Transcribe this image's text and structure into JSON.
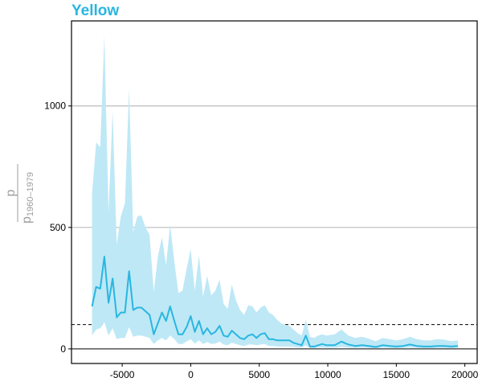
{
  "title": "Yellow",
  "chart_data": {
    "type": "line",
    "title": "Yellow",
    "xlabel": "",
    "ylabel_main": "p",
    "ylabel_denominator": "p",
    "ylabel_subscript": "1960–1979",
    "xlim": [
      -8700,
      20900
    ],
    "ylim": [
      -60,
      1350
    ],
    "xticks": [
      -5000,
      0,
      5000,
      10000,
      15000,
      20000
    ],
    "yticks": [
      0,
      500,
      1000
    ],
    "reference_line": 100,
    "grid": "horizontal",
    "colors": {
      "line": "#29b6e0",
      "band": "#bee8f6",
      "title": "#29b6e0",
      "grid": "#bdbdbd",
      "ylabel": "#9e9e9e"
    },
    "series": [
      {
        "x": [
          -7200,
          -6900,
          -6600,
          -6300,
          -6000,
          -5700,
          -5400,
          -5100,
          -4800,
          -4500,
          -4200,
          -3900,
          -3600,
          -3300,
          -3000,
          -2700,
          -2400,
          -2100,
          -1800,
          -1500,
          -1200,
          -900,
          -600,
          -300,
          0,
          300,
          600,
          900,
          1200,
          1500,
          1800,
          2100,
          2400,
          2700,
          3000,
          3300,
          3600,
          3900,
          4200,
          4500,
          4800,
          5100,
          5400,
          5700,
          6000,
          6300,
          6600,
          6900,
          7200,
          7500,
          7800,
          8100,
          8400,
          8700,
          9000,
          9300,
          9600,
          9900,
          10500,
          11000,
          11500,
          12000,
          12500,
          13000,
          13500,
          14000,
          14500,
          15000,
          15500,
          16000,
          16500,
          17000,
          17500,
          18000,
          18500,
          19000,
          19500
        ],
        "values": [
          175,
          255,
          248,
          380,
          190,
          290,
          130,
          150,
          150,
          320,
          160,
          170,
          170,
          155,
          140,
          60,
          105,
          150,
          115,
          175,
          115,
          60,
          60,
          90,
          135,
          70,
          115,
          60,
          85,
          60,
          70,
          95,
          55,
          50,
          75,
          60,
          45,
          40,
          55,
          60,
          45,
          60,
          65,
          40,
          40,
          35,
          35,
          35,
          35,
          25,
          20,
          15,
          55,
          10,
          10,
          15,
          20,
          15,
          15,
          30,
          18,
          12,
          15,
          12,
          8,
          15,
          12,
          10,
          12,
          18,
          12,
          10,
          10,
          12,
          12,
          10,
          12
        ],
        "upper": [
          640,
          850,
          830,
          1290,
          560,
          980,
          430,
          545,
          600,
          1070,
          480,
          545,
          550,
          500,
          470,
          235,
          380,
          460,
          345,
          510,
          360,
          230,
          240,
          330,
          410,
          240,
          385,
          215,
          300,
          220,
          240,
          285,
          185,
          165,
          265,
          200,
          160,
          140,
          180,
          175,
          150,
          170,
          180,
          150,
          140,
          120,
          105,
          100,
          95,
          80,
          65,
          55,
          120,
          50,
          45,
          55,
          60,
          55,
          60,
          80,
          55,
          45,
          50,
          42,
          32,
          45,
          40,
          35,
          40,
          50,
          40,
          35,
          35,
          40,
          38,
          32,
          35
        ],
        "lower": [
          55,
          80,
          85,
          110,
          55,
          85,
          40,
          45,
          45,
          90,
          50,
          55,
          55,
          50,
          45,
          20,
          35,
          45,
          35,
          55,
          40,
          20,
          20,
          30,
          40,
          22,
          35,
          20,
          28,
          20,
          22,
          30,
          18,
          15,
          25,
          20,
          15,
          12,
          18,
          18,
          15,
          18,
          20,
          12,
          12,
          10,
          10,
          10,
          10,
          8,
          6,
          5,
          15,
          3,
          3,
          5,
          6,
          5,
          5,
          8,
          5,
          4,
          5,
          4,
          2,
          5,
          4,
          3,
          4,
          6,
          4,
          3,
          3,
          4,
          4,
          3,
          4
        ]
      }
    ]
  }
}
